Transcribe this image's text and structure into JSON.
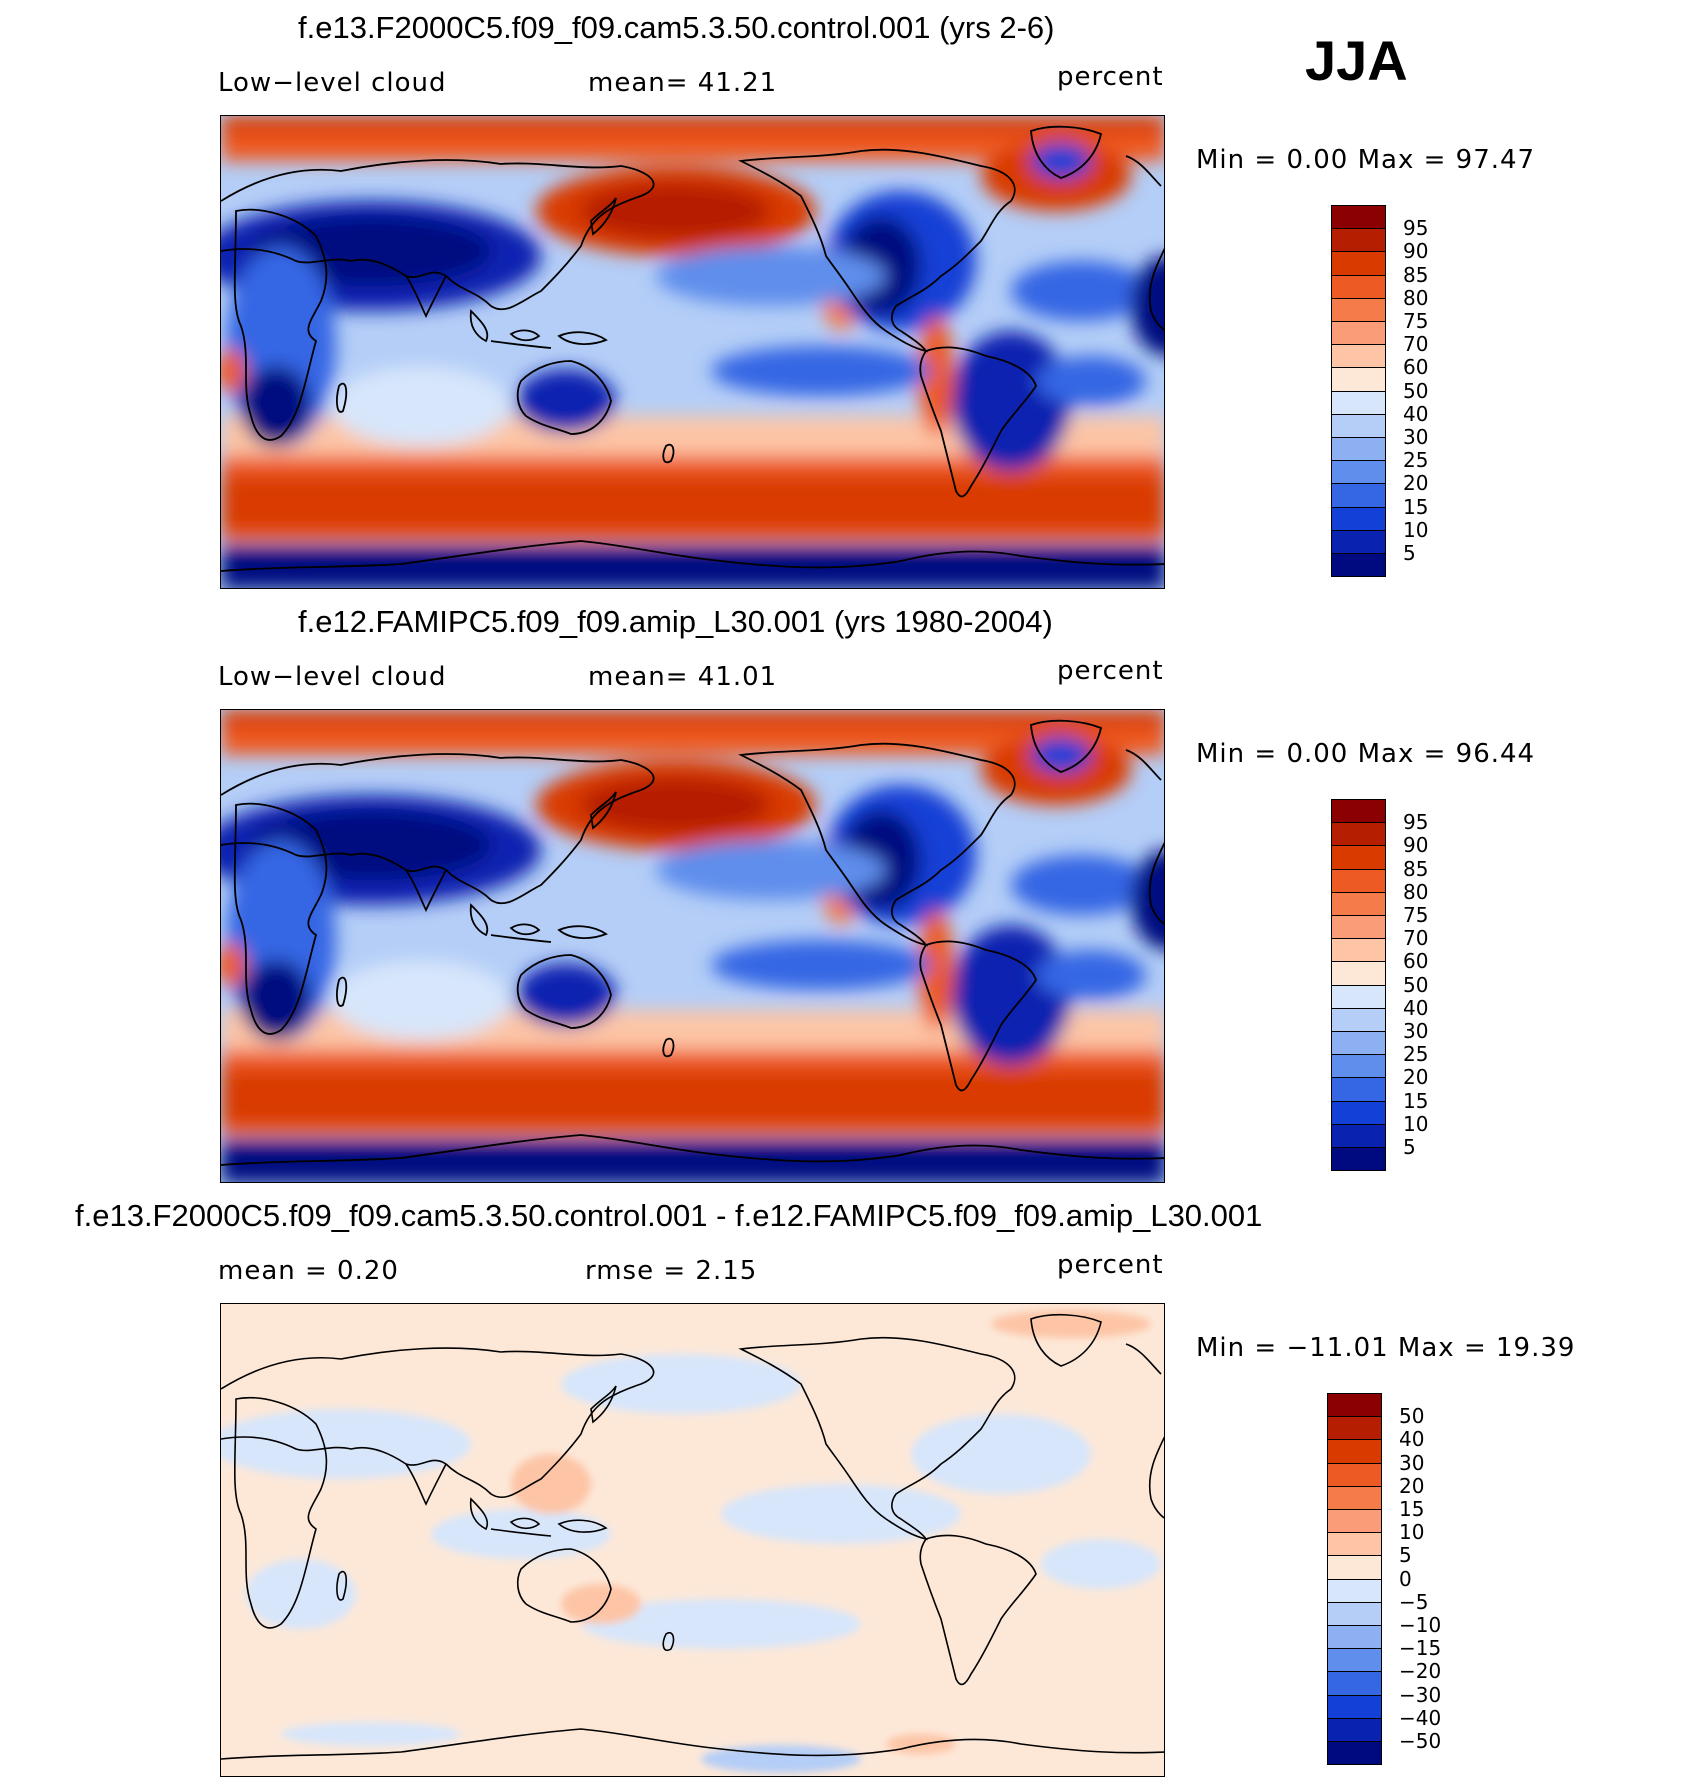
{
  "season": "JJA",
  "colors": {
    "abs_scale": [
      "#8b0000",
      "#b51e00",
      "#d93a00",
      "#ee5a24",
      "#f57c4a",
      "#fa9c78",
      "#fdc5a6",
      "#fde8d8",
      "#d7e6fb",
      "#b4cef7",
      "#8db0f2",
      "#5f8eec",
      "#3566e4",
      "#1340d6",
      "#0a22b0",
      "#000a80"
    ],
    "diff_scale": [
      "#8b0000",
      "#b51e00",
      "#d93a00",
      "#ee5a24",
      "#f57c4a",
      "#fa9c78",
      "#fdc5a6",
      "#fde8d8",
      "#d7e6fb",
      "#b4cef7",
      "#8db0f2",
      "#5f8eec",
      "#3566e4",
      "#1340d6",
      "#0a22b0",
      "#000a80"
    ]
  },
  "panels": [
    {
      "title": "f.e13.F2000C5.f09_f09.cam5.3.50.control.001 (yrs 2-6)",
      "left_label": "Low−level cloud",
      "mid_label": "mean=   41.21",
      "right_label": "percent",
      "minmax": "Min  =     0.00  Max  =    97.47",
      "colorbar_labels": [
        "95",
        "90",
        "85",
        "80",
        "75",
        "70",
        "60",
        "50",
        "40",
        "30",
        "25",
        "20",
        "15",
        "10",
        "5"
      ],
      "kind": "abs"
    },
    {
      "title": "f.e12.FAMIPC5.f09_f09.amip_L30.001 (yrs 1980-2004)",
      "left_label": "Low−level cloud",
      "mid_label": "mean=   41.01",
      "right_label": "percent",
      "minmax": "Min  =     0.00  Max  =    96.44",
      "colorbar_labels": [
        "95",
        "90",
        "85",
        "80",
        "75",
        "70",
        "60",
        "50",
        "40",
        "30",
        "25",
        "20",
        "15",
        "10",
        "5"
      ],
      "kind": "abs"
    },
    {
      "title": "f.e13.F2000C5.f09_f09.cam5.3.50.control.001 - f.e12.FAMIPC5.f09_f09.amip_L30.001",
      "left_label": "mean  =     0.20",
      "mid_label": "rmse  =     2.15",
      "right_label": "percent",
      "minmax": "Min  =  −11.01  Max  =    19.39",
      "colorbar_labels": [
        "50",
        "40",
        "30",
        "20",
        "15",
        "10",
        "5",
        "0",
        "−5",
        "−10",
        "−15",
        "−20",
        "−30",
        "−40",
        "−50"
      ],
      "kind": "diff"
    }
  ]
}
